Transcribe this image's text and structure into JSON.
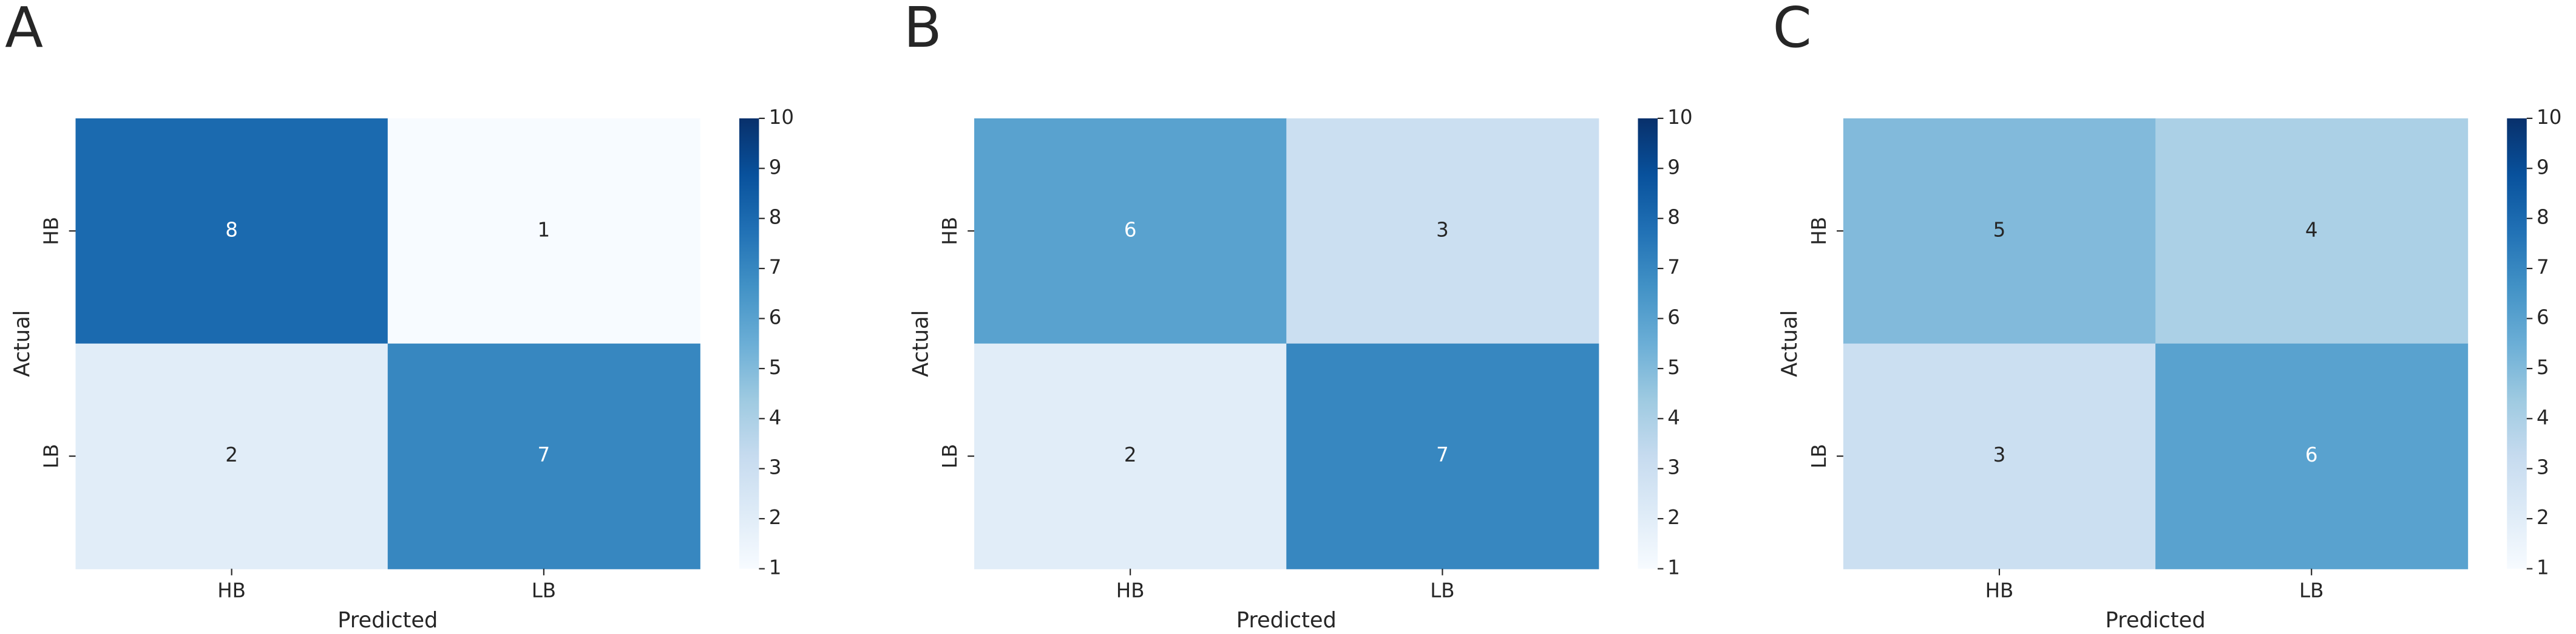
{
  "chart_data": [
    {
      "type": "heatmap",
      "panel": "A",
      "x_categories": [
        "HB",
        "LB"
      ],
      "y_categories": [
        "HB",
        "LB"
      ],
      "values": [
        [
          8,
          1
        ],
        [
          2,
          7
        ]
      ],
      "xlabel": "Predicted",
      "ylabel": "Actual",
      "clim": [
        1,
        10
      ],
      "cticks": [
        1,
        2,
        3,
        4,
        5,
        6,
        7,
        8,
        9,
        10
      ],
      "colormap": [
        "#f7fbff",
        "#deebf7",
        "#c6dbef",
        "#9ecae1",
        "#6baed6",
        "#4292c6",
        "#2171b5",
        "#08519c",
        "#08306b"
      ]
    },
    {
      "type": "heatmap",
      "panel": "B",
      "x_categories": [
        "HB",
        "LB"
      ],
      "y_categories": [
        "HB",
        "LB"
      ],
      "values": [
        [
          6,
          3
        ],
        [
          2,
          7
        ]
      ],
      "xlabel": "Predicted",
      "ylabel": "Actual",
      "clim": [
        1,
        10
      ],
      "cticks": [
        1,
        2,
        3,
        4,
        5,
        6,
        7,
        8,
        9,
        10
      ],
      "colormap": [
        "#f7fbff",
        "#deebf7",
        "#c6dbef",
        "#9ecae1",
        "#6baed6",
        "#4292c6",
        "#2171b5",
        "#08519c",
        "#08306b"
      ]
    },
    {
      "type": "heatmap",
      "panel": "C",
      "x_categories": [
        "HB",
        "LB"
      ],
      "y_categories": [
        "HB",
        "LB"
      ],
      "values": [
        [
          5,
          4
        ],
        [
          3,
          6
        ]
      ],
      "xlabel": "Predicted",
      "ylabel": "Actual",
      "clim": [
        1,
        10
      ],
      "cticks": [
        1,
        2,
        3,
        4,
        5,
        6,
        7,
        8,
        9,
        10
      ],
      "colormap": [
        "#f7fbff",
        "#deebf7",
        "#c6dbef",
        "#9ecae1",
        "#6baed6",
        "#4292c6",
        "#2171b5",
        "#08519c",
        "#08306b"
      ]
    }
  ]
}
